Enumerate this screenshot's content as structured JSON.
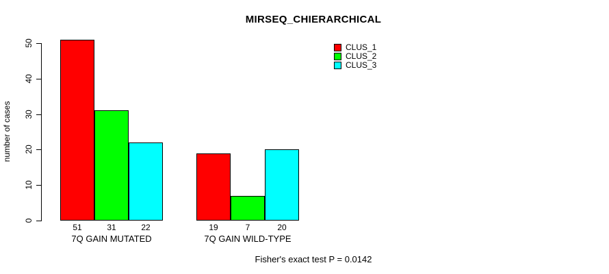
{
  "chart_data": {
    "type": "bar",
    "title": "MIRSEQ_CHIERARCHICAL",
    "ylabel": "number of cases",
    "xlabel": "",
    "categories": [
      "7Q GAIN MUTATED",
      "7Q GAIN WILD-TYPE"
    ],
    "series": [
      {
        "name": "CLUS_1",
        "color": "#ff0000",
        "values": [
          51,
          19
        ]
      },
      {
        "name": "CLUS_2",
        "color": "#00ff00",
        "values": [
          31,
          7
        ]
      },
      {
        "name": "CLUS_3",
        "color": "#00ffff",
        "values": [
          22,
          20
        ]
      }
    ],
    "yticks": [
      0,
      10,
      20,
      30,
      40,
      50
    ],
    "ylim": [
      0,
      50
    ],
    "grid": false,
    "legend_position": "top-right",
    "bar_value_labels_shown": true,
    "annotation": "Fisher's exact test P = 0.0142",
    "background": "#ffffff",
    "text_color": "#000000",
    "bar_border_color": "#000000"
  }
}
